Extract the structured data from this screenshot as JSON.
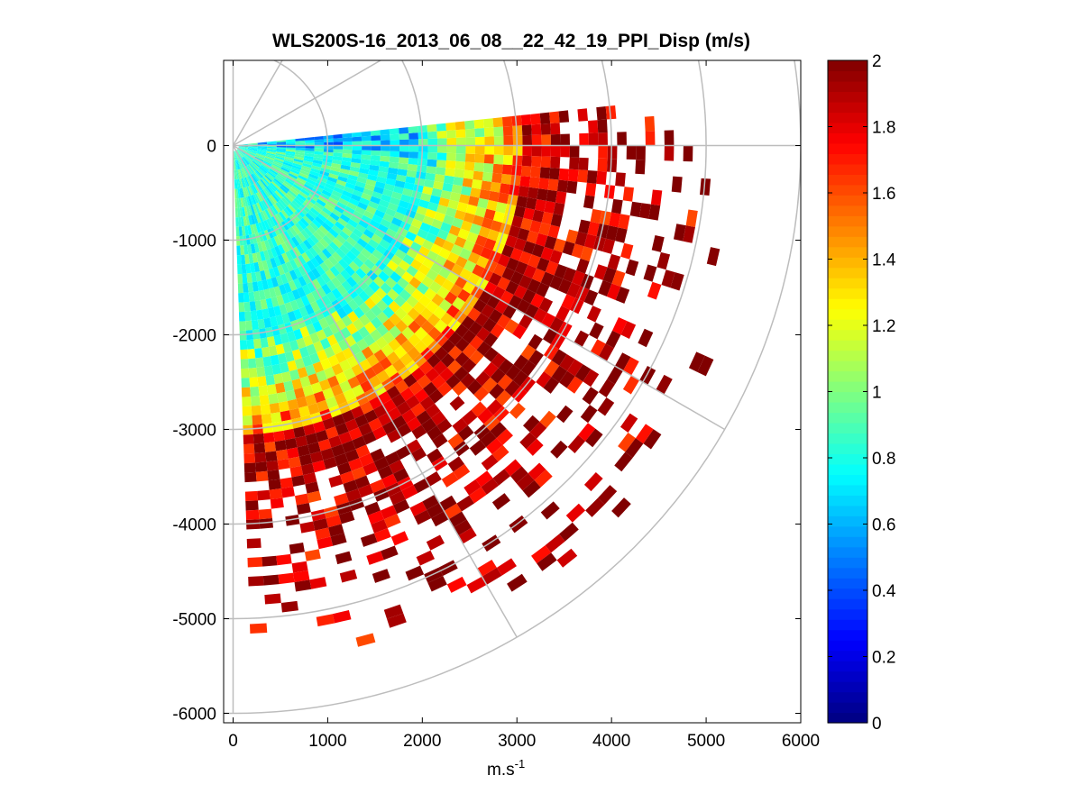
{
  "chart_data": {
    "type": "heatmap",
    "title": "WLS200S-16_2013_06_08__22_42_19_PPI_Disp (m/s)",
    "xlabel_main": "m.s",
    "xlabel_exp": "-1",
    "ylabel": "",
    "xlim": [
      -100,
      6000
    ],
    "ylim": [
      -6100,
      900
    ],
    "x_ticks": [
      0,
      1000,
      2000,
      3000,
      4000,
      5000,
      6000
    ],
    "y_ticks": [
      0,
      -1000,
      -2000,
      -3000,
      -4000,
      -5000,
      -6000
    ],
    "grid": "polar",
    "polar_grid": {
      "range_rings": [
        1000,
        2000,
        3000,
        4000,
        5000,
        6000
      ],
      "spoke_angles_deg": [
        90,
        60,
        30,
        0,
        -30,
        -60,
        -90
      ]
    },
    "scan_sector": {
      "azimuth_min_deg": -88,
      "azimuth_max_deg": 6,
      "range_max": 5700
    },
    "colorbar": {
      "colormap": "jet",
      "range": [
        0,
        2
      ],
      "ticks": [
        0,
        0.2,
        0.4,
        0.6,
        0.8,
        1,
        1.2,
        1.4,
        1.6,
        1.8,
        2
      ],
      "tick_labels": [
        "0",
        "0.2",
        "0.4",
        "0.6",
        "0.8",
        "1",
        "1.2",
        "1.4",
        "1.6",
        "1.8",
        "2"
      ]
    }
  }
}
